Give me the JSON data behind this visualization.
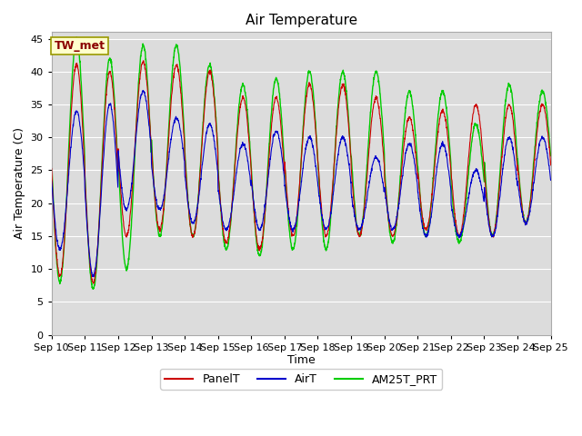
{
  "title": "Air Temperature",
  "ylabel": "Air Temperature (C)",
  "xlabel": "Time",
  "annotation": "TW_met",
  "yticks": [
    0,
    5,
    10,
    15,
    20,
    25,
    30,
    35,
    40,
    45
  ],
  "ylim": [
    0,
    46
  ],
  "xtick_labels": [
    "Sep 10",
    "Sep 11",
    "Sep 12",
    "Sep 13",
    "Sep 14",
    "Sep 15",
    "Sep 16",
    "Sep 17",
    "Sep 18",
    "Sep 19",
    "Sep 20",
    "Sep 21",
    "Sep 22",
    "Sep 23",
    "Sep 24",
    "Sep 25"
  ],
  "line_colors": {
    "PanelT": "#cc0000",
    "AirT": "#0000cc",
    "AM25T_PRT": "#00cc00"
  },
  "line_widths": {
    "PanelT": 0.8,
    "AirT": 0.8,
    "AM25T_PRT": 1.0
  },
  "plot_bg": "#dcdcdc",
  "fig_bg": "#ffffff",
  "grid_color": "#ffffff",
  "title_fontsize": 11,
  "axis_fontsize": 9,
  "tick_fontsize": 8,
  "n_days": 15,
  "day_peaks_panel": [
    41,
    40,
    41.5,
    41,
    40,
    36,
    36,
    38,
    38,
    36,
    33,
    34,
    35,
    35,
    35
  ],
  "day_mins_panel": [
    9,
    8,
    15,
    16,
    15,
    14,
    13,
    15,
    15,
    15,
    15,
    16,
    15,
    15,
    17
  ],
  "day_peaks_air": [
    34,
    35,
    37,
    33,
    32,
    29,
    31,
    30,
    30,
    27,
    29,
    29,
    25,
    30,
    30
  ],
  "day_mins_air": [
    13,
    9,
    19,
    19,
    17,
    16,
    16,
    16,
    16,
    16,
    16,
    15,
    15,
    15,
    17
  ],
  "day_peaks_am25": [
    45,
    42,
    44,
    44,
    41,
    38,
    39,
    40,
    40,
    40,
    37,
    37,
    32,
    38,
    37
  ],
  "day_mins_am25": [
    8,
    7,
    10,
    15,
    15,
    13,
    12,
    13,
    13,
    15,
    14,
    15,
    14,
    15,
    17
  ]
}
